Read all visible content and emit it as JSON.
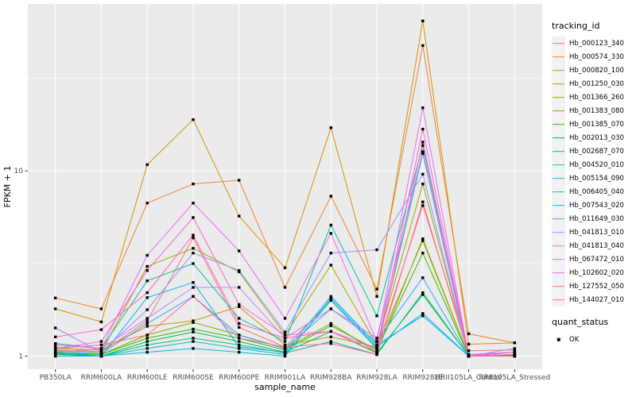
{
  "figure": {
    "background": "#FFFFFF",
    "panel_bg": "#EBEBEB",
    "grid_color": "#FFFFFF",
    "axis_text_color": "#4D4D4D",
    "axis_title_color": "#000000",
    "tick_mark_color": "#333333"
  },
  "chart_data": {
    "type": "line",
    "title": "",
    "xlabel": "sample_name",
    "ylabel": "FPKM + 1",
    "y_scale": "log10",
    "ylim": [
      0.85,
      79.6
    ],
    "y_ticks": [
      {
        "label": "1",
        "value": 1
      },
      {
        "label": "10",
        "value": 10
      }
    ],
    "y_minor_gridlines": [
      3.1623,
      31.623
    ],
    "grid": true,
    "legend_position": "right",
    "point_shape": "filled-square",
    "point_color": "#000000",
    "categories": [
      "PB350LA",
      "RRIM600LA",
      "RRIM600LE",
      "RRIM600SE",
      "RRIM600PE",
      "RRIM901LA",
      "RRIM928BA",
      "RRIM928LA",
      "RRIM928LE",
      "RRII105LA_Control",
      "RRII105LA_Stressed"
    ],
    "series": [
      {
        "name": "Hb_000123_340",
        "color": "#F8766D",
        "values": [
          1.12,
          1.05,
          1.55,
          4.35,
          1.43,
          1.12,
          2.0,
          1.1,
          6.5,
          1.07,
          1.08
        ]
      },
      {
        "name": "Hb_000574_330",
        "color": "#EA8331",
        "values": [
          2.06,
          1.8,
          6.7,
          8.5,
          8.9,
          2.35,
          7.3,
          2.3,
          47.5,
          1.32,
          1.18
        ]
      },
      {
        "name": "Hb_000820_100",
        "color": "#D89000",
        "values": [
          1.8,
          1.53,
          10.8,
          18.9,
          5.7,
          3.0,
          17.1,
          2.1,
          64.5,
          1.16,
          1.18
        ]
      },
      {
        "name": "Hb_001250_030",
        "color": "#C09B00",
        "values": [
          1.1,
          1.08,
          1.45,
          1.55,
          1.85,
          1.15,
          1.27,
          1.12,
          4.2,
          1.0,
          1.02
        ]
      },
      {
        "name": "Hb_001366_260",
        "color": "#A3A500",
        "values": [
          1.08,
          1.05,
          3.05,
          3.82,
          2.85,
          1.3,
          3.1,
          1.15,
          8.5,
          1.02,
          1.05
        ]
      },
      {
        "name": "Hb_001383_080",
        "color": "#7CAE00",
        "values": [
          1.05,
          1.02,
          1.3,
          1.52,
          1.3,
          1.1,
          1.5,
          1.05,
          4.3,
          1.0,
          1.02
        ]
      },
      {
        "name": "Hb_001385_070",
        "color": "#39B600",
        "values": [
          1.04,
          1.02,
          1.25,
          1.4,
          1.25,
          1.08,
          1.46,
          1.08,
          3.6,
          1.0,
          1.01
        ]
      },
      {
        "name": "Hb_002013_030",
        "color": "#00BB4E",
        "values": [
          1.03,
          1.0,
          1.2,
          1.35,
          1.2,
          1.05,
          1.36,
          1.04,
          2.15,
          1.0,
          1.0
        ]
      },
      {
        "name": "Hb_002687_070",
        "color": "#00BF7D",
        "values": [
          1.02,
          1.0,
          1.15,
          1.25,
          1.15,
          1.04,
          1.2,
          1.02,
          2.2,
          1.0,
          1.0
        ]
      },
      {
        "name": "Hb_004520_010",
        "color": "#00C1A3",
        "values": [
          1.17,
          1.1,
          2.55,
          3.16,
          1.6,
          1.2,
          5.1,
          1.65,
          13.7,
          1.0,
          1.05
        ]
      },
      {
        "name": "Hb_005154_090",
        "color": "#00BFC4",
        "values": [
          1.0,
          1.0,
          1.1,
          1.2,
          1.1,
          1.02,
          2.0,
          1.1,
          12.4,
          1.0,
          1.0
        ]
      },
      {
        "name": "Hb_006405_040",
        "color": "#00BAE0",
        "values": [
          1.0,
          1.0,
          1.05,
          1.1,
          1.05,
          1.0,
          2.05,
          1.12,
          1.7,
          1.0,
          1.0
        ]
      },
      {
        "name": "Hb_007543_020",
        "color": "#00B0F6",
        "values": [
          1.05,
          1.0,
          2.07,
          2.5,
          1.12,
          1.05,
          2.1,
          1.15,
          1.65,
          1.0,
          1.0
        ]
      },
      {
        "name": "Hb_011649_030",
        "color": "#35A2FF",
        "values": [
          1.07,
          1.03,
          1.5,
          2.1,
          1.3,
          1.1,
          1.8,
          1.2,
          2.65,
          1.0,
          1.02
        ]
      },
      {
        "name": "Hb_041813_010",
        "color": "#9590FF",
        "values": [
          1.42,
          1.05,
          1.78,
          3.6,
          2.9,
          1.35,
          3.6,
          3.75,
          9.6,
          1.0,
          1.1
        ]
      },
      {
        "name": "Hb_041813_040",
        "color": "#C77CFF",
        "values": [
          1.15,
          1.1,
          1.6,
          2.35,
          2.35,
          1.25,
          1.8,
          1.25,
          12.7,
          1.02,
          1.05
        ]
      },
      {
        "name": "Hb_067472_010",
        "color": "#E76BF3",
        "values": [
          1.05,
          1.1,
          3.5,
          6.7,
          3.7,
          1.6,
          4.6,
          1.2,
          21.9,
          1.0,
          1.05
        ]
      },
      {
        "name": "Hb_102602_020",
        "color": "#FA62DB",
        "values": [
          1.1,
          1.2,
          2.9,
          5.6,
          1.9,
          1.3,
          1.36,
          1.1,
          16.8,
          1.0,
          1.02
        ]
      },
      {
        "name": "Hb_127552_050",
        "color": "#FF62BC",
        "values": [
          1.27,
          1.39,
          2.2,
          4.5,
          1.5,
          1.25,
          1.36,
          1.05,
          14.3,
          1.0,
          1.05
        ]
      },
      {
        "name": "Hb_144027_010",
        "color": "#FF6A98",
        "values": [
          1.1,
          1.15,
          1.3,
          2.1,
          1.25,
          1.12,
          1.17,
          1.02,
          6.8,
          1.0,
          1.0
        ]
      }
    ],
    "legend": {
      "color_title": "tracking_id",
      "shape_title": "quant_status",
      "shape_items": [
        {
          "label": "OK",
          "shape": "filled-square",
          "color": "#000000"
        }
      ]
    }
  }
}
